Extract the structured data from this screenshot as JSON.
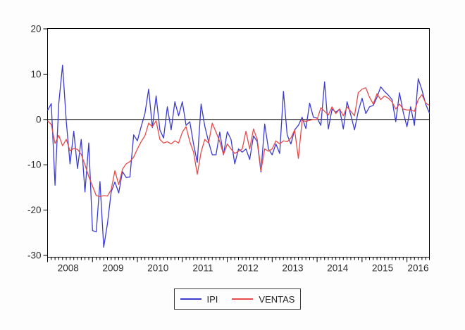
{
  "figure": {
    "background": "#fdfdfd",
    "axis_color": "#000000",
    "zero_line": 0,
    "legend": {
      "items": [
        {
          "label": "IPI",
          "color": "#3b3bd0"
        },
        {
          "label": "VENTAS",
          "color": "#e84a4a"
        }
      ]
    }
  },
  "chart_data": {
    "type": "line",
    "title": "",
    "xlabel": "",
    "ylabel": "",
    "frequency": "monthly",
    "start_month": "2008-01",
    "n_points": 103,
    "x_tick_year_labels": [
      "2008",
      "2009",
      "2010",
      "2011",
      "2012",
      "2013",
      "2014",
      "2015",
      "2016"
    ],
    "y_ticks": [
      20,
      10,
      0,
      -10,
      -20,
      -30
    ],
    "ylim": [
      -30.5,
      20.5
    ],
    "grid": false,
    "legend_position": "bottom-center",
    "series": [
      {
        "name": "IPI",
        "color": "#3b3bd0",
        "values": [
          2.0,
          3.5,
          -14.5,
          3.5,
          12.0,
          -0.5,
          -9.8,
          -2.6,
          -10.8,
          -4.4,
          -16.0,
          -5.2,
          -24.5,
          -24.8,
          -13.7,
          -28.2,
          -23.0,
          -16.0,
          -13.8,
          -16.2,
          -11.5,
          -12.8,
          -12.7,
          -3.4,
          -4.7,
          -1.6,
          1.3,
          6.7,
          -1.8,
          5.2,
          -2.3,
          -4.1,
          2.8,
          -2.3,
          3.9,
          0.8,
          3.9,
          -1.3,
          -0.5,
          -5.4,
          -9.5,
          3.4,
          -1.5,
          -4.9,
          -7.8,
          -7.8,
          -2.8,
          -7.8,
          -2.7,
          -4.4,
          -9.8,
          -6.5,
          -7.2,
          -6.5,
          -8.8,
          -3.6,
          -4.9,
          -11.6,
          -1.0,
          -6.5,
          -7.8,
          -5.4,
          -7.5,
          6.2,
          -3.4,
          -5.4,
          -2.3,
          -1.3,
          0.5,
          -2.0,
          3.6,
          0.5,
          0.3,
          -1.3,
          8.3,
          -2.1,
          2.3,
          1.6,
          2.3,
          -2.1,
          3.9,
          1.0,
          -2.3,
          1.8,
          4.7,
          1.3,
          2.8,
          3.1,
          4.9,
          7.2,
          6.2,
          5.4,
          4.4,
          -0.5,
          5.9,
          1.6,
          -1.6,
          2.8,
          -1.3,
          9.0,
          6.5,
          3.4,
          1.4
        ]
      },
      {
        "name": "VENTAS",
        "color": "#e84a4a",
        "values": [
          -0.3,
          -1.1,
          -5.3,
          -3.5,
          -5.8,
          -4.4,
          -6.9,
          -6.4,
          -6.6,
          -7.7,
          -10.0,
          -12.6,
          -14.7,
          -16.8,
          -17.0,
          -16.8,
          -16.9,
          -15.5,
          -11.3,
          -14.4,
          -11.0,
          -9.8,
          -9.3,
          -8.3,
          -6.5,
          -4.9,
          -3.6,
          -0.8,
          -1.6,
          -0.3,
          -4.4,
          -5.2,
          -4.9,
          -5.4,
          -4.7,
          -5.2,
          -2.8,
          -1.6,
          -4.9,
          -7.2,
          -12.1,
          -7.2,
          -4.4,
          -5.2,
          -0.8,
          -2.8,
          -4.9,
          -7.7,
          -5.4,
          -6.5,
          -7.5,
          -7.0,
          -6.5,
          -2.6,
          -6.5,
          -2.1,
          -4.4,
          -11.3,
          -6.5,
          -7.0,
          -6.5,
          -4.7,
          -5.4,
          -4.7,
          -4.9,
          -4.1,
          -2.3,
          -8.6,
          -0.2,
          -0.4,
          -0.2,
          0.0,
          0.0,
          2.6,
          1.8,
          1.0,
          2.8,
          1.3,
          2.3,
          0.8,
          2.8,
          1.8,
          0.8,
          5.9,
          6.7,
          7.0,
          4.9,
          3.4,
          5.7,
          4.4,
          5.2,
          4.7,
          3.9,
          2.3,
          3.4,
          2.3,
          2.1,
          2.1,
          1.8,
          4.4,
          5.5,
          3.6,
          3.1
        ]
      }
    ]
  }
}
